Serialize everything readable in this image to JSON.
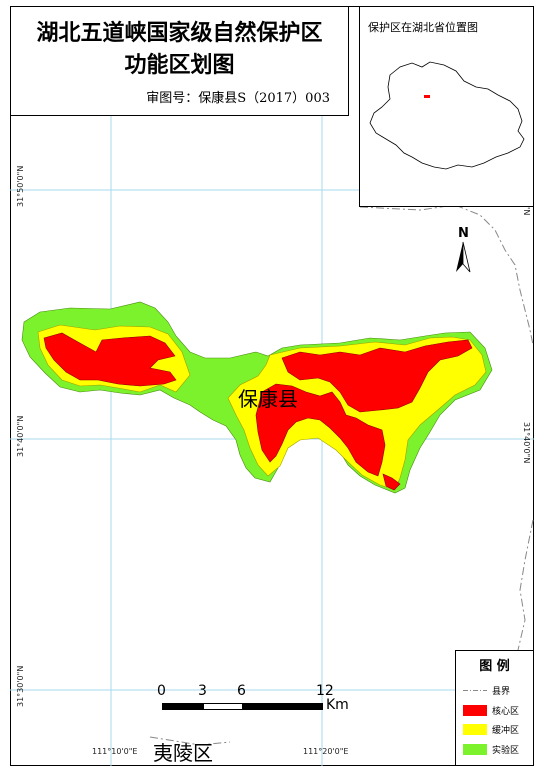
{
  "title": {
    "line1": "湖北五道峡国家级自然保护区",
    "line2": "功能区划图",
    "approval": "审图号：保康县S（2017）003"
  },
  "inset": {
    "label": "保护区在湖北省位置图"
  },
  "coordinates": {
    "lat_top": "31°50'0\"N",
    "lat_mid": "31°40'0\"N",
    "lat_bottom": "31°30'0\"N",
    "lon_left": "111°10'0\"E",
    "lon_right": "111°20'0\"E"
  },
  "places": {
    "county": "保康县",
    "county_south": "夷陵区"
  },
  "north_arrow": {
    "letter": "N"
  },
  "scale": {
    "ticks": [
      "0",
      "3",
      "6",
      "12"
    ],
    "unit": "Km"
  },
  "legend": {
    "title": "图  例",
    "items": [
      {
        "label": "县界",
        "kind": "line",
        "color": "#888888"
      },
      {
        "label": "核心区",
        "kind": "fill",
        "color": "#ff0000"
      },
      {
        "label": "缓冲区",
        "kind": "fill",
        "color": "#ffff00"
      },
      {
        "label": "实验区",
        "kind": "fill",
        "color": "#7bf22c"
      }
    ]
  },
  "colors": {
    "core": "#ff0000",
    "buffer": "#ffff00",
    "experimental": "#7bf22c",
    "grid": "#a7d9ee",
    "boundary": "#888888"
  }
}
